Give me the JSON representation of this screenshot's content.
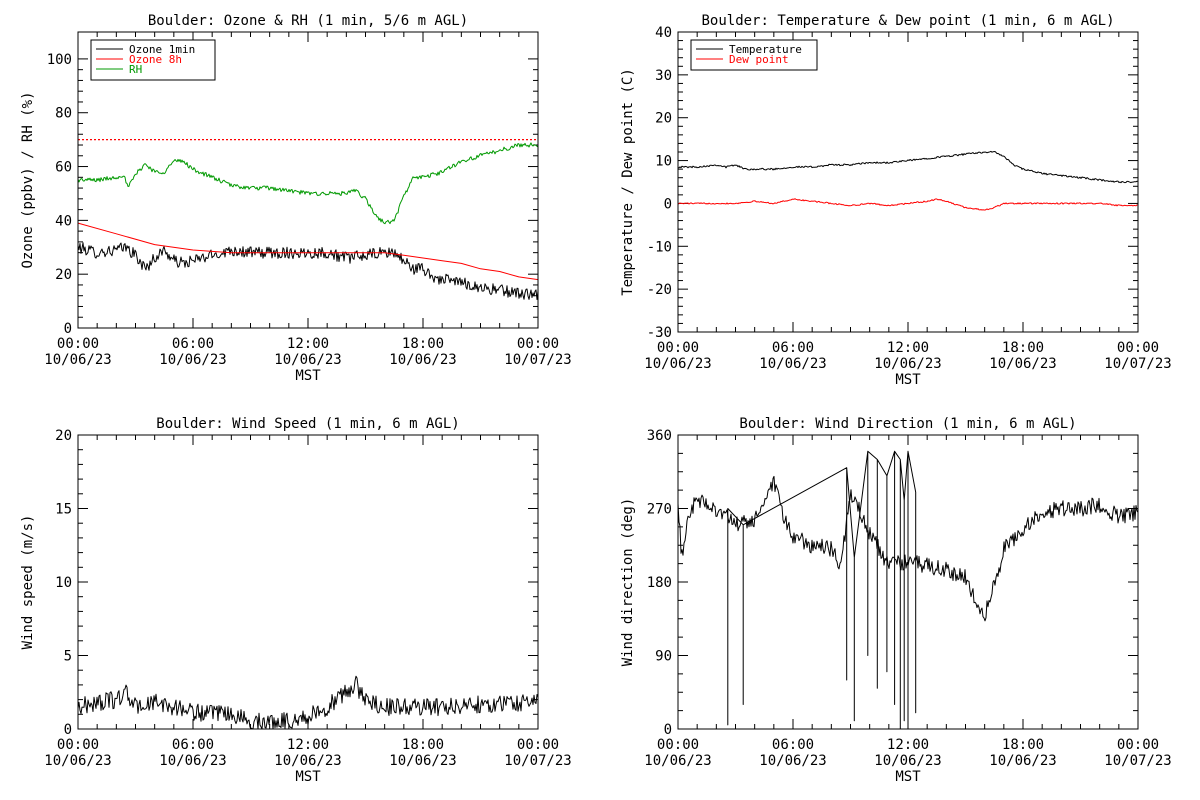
{
  "x_ticks": [
    "00:00",
    "06:00",
    "12:00",
    "18:00",
    "00:00"
  ],
  "x_dates": [
    "10/06/23",
    "10/06/23",
    "10/06/23",
    "10/06/23",
    "10/07/23"
  ],
  "x_label": "MST",
  "chart_data": [
    {
      "id": "ozone",
      "type": "line",
      "title": "Boulder: Ozone & RH (1 min, 5/6 m AGL)",
      "ylabel": "Ozone (ppbv) / RH (%)",
      "xlabel": "MST",
      "ylim": [
        0,
        110
      ],
      "yticks": [
        0,
        20,
        40,
        60,
        80,
        100
      ],
      "xlim_hours": [
        0,
        24
      ],
      "legend": "top-left",
      "reference_line": {
        "y": 70,
        "color": "#ff0000",
        "style": "dotted"
      },
      "series": [
        {
          "name": "Ozone 1min",
          "color": "#000000",
          "noise": 2.2,
          "x": [
            0,
            1,
            2,
            2.5,
            3,
            3.5,
            4,
            4.5,
            5,
            5.5,
            6,
            7,
            8,
            9,
            10,
            11,
            12,
            13,
            14,
            15,
            16,
            16.5,
            17,
            17.5,
            18,
            18.5,
            19,
            20,
            21,
            22,
            23,
            24
          ],
          "y": [
            30,
            28,
            29,
            30,
            27,
            22,
            26,
            29,
            25,
            24,
            25,
            27,
            29,
            28,
            28,
            28,
            28,
            28,
            26,
            27,
            28,
            28,
            25,
            22,
            22,
            19,
            18,
            17,
            15,
            14,
            13,
            12
          ]
        },
        {
          "name": "Ozone 8h",
          "color": "#ff0000",
          "noise": 0,
          "x": [
            0,
            2,
            4,
            6,
            8,
            10,
            12,
            14,
            16,
            17,
            18,
            19,
            20,
            21,
            22,
            23,
            24
          ],
          "y": [
            39,
            35,
            31,
            29,
            28,
            28,
            28,
            28,
            28,
            27,
            26,
            25,
            24,
            22,
            21,
            19,
            18
          ]
        },
        {
          "name": "RH",
          "color": "#009900",
          "noise": 0.8,
          "x": [
            0,
            1,
            2,
            2.4,
            2.6,
            3,
            3.5,
            4,
            4.5,
            5,
            5.5,
            6,
            7,
            8,
            9,
            10,
            11,
            12,
            13,
            14,
            14.5,
            15,
            15.5,
            16,
            16.5,
            17,
            17.5,
            18,
            19,
            20,
            21,
            22,
            23,
            24
          ],
          "y": [
            55,
            55,
            56,
            57,
            52,
            57,
            61,
            58,
            58,
            62,
            62,
            59,
            56,
            53,
            52,
            52,
            51,
            50,
            50,
            50,
            51,
            48,
            42,
            39,
            40,
            49,
            56,
            56,
            58,
            62,
            64,
            66,
            68,
            68
          ]
        }
      ]
    },
    {
      "id": "temp",
      "type": "line",
      "title": "Boulder: Temperature & Dew point (1 min, 6 m AGL)",
      "ylabel": "Temperature / Dew point (C)",
      "xlabel": "MST",
      "ylim": [
        -30,
        40
      ],
      "yticks": [
        -30,
        -20,
        -10,
        0,
        10,
        20,
        30,
        40
      ],
      "xlim_hours": [
        0,
        24
      ],
      "legend": "top-left",
      "series": [
        {
          "name": "Temperature",
          "color": "#000000",
          "noise": 0.2,
          "x": [
            0,
            1,
            2,
            2.5,
            3,
            3.5,
            4,
            5,
            6,
            7,
            8,
            9,
            10,
            11,
            12,
            13,
            14,
            15,
            16,
            16.5,
            17,
            17.5,
            18,
            19,
            20,
            21,
            22,
            23,
            24
          ],
          "y": [
            8.5,
            8.5,
            9,
            8.5,
            9,
            8,
            8,
            8,
            8.5,
            8.5,
            9,
            9,
            9.5,
            9.5,
            10,
            10.5,
            11,
            11.5,
            12,
            12,
            11,
            9,
            8,
            7,
            6.5,
            6,
            5.5,
            5,
            5
          ]
        },
        {
          "name": "Dew point",
          "color": "#ff0000",
          "noise": 0.15,
          "x": [
            0,
            1,
            2,
            3,
            4,
            5,
            6,
            7,
            8,
            9,
            10,
            11,
            12,
            13,
            13.5,
            14,
            15,
            16,
            16.5,
            17,
            18,
            19,
            20,
            21,
            22,
            23,
            24
          ],
          "y": [
            0,
            0,
            0,
            0,
            0.5,
            0,
            1,
            0.5,
            0,
            -0.5,
            0,
            -0.5,
            0,
            0.5,
            1,
            0.5,
            -1,
            -1.5,
            -1,
            0,
            0,
            0,
            0,
            0,
            0,
            -0.5,
            -0.5
          ]
        }
      ]
    },
    {
      "id": "wspd",
      "type": "line",
      "title": "Boulder: Wind Speed (1 min, 6 m AGL)",
      "ylabel": "Wind speed (m/s)",
      "xlabel": "MST",
      "ylim": [
        0,
        20
      ],
      "yticks": [
        0,
        5,
        10,
        15,
        20
      ],
      "xlim_hours": [
        0,
        24
      ],
      "series": [
        {
          "name": "",
          "color": "#000000",
          "noise": 0.6,
          "floor": 0,
          "x": [
            0,
            1,
            2,
            2.5,
            3,
            4,
            5,
            6,
            7,
            8,
            9,
            10,
            11,
            12,
            13,
            14,
            14.5,
            15,
            16,
            17,
            18,
            19,
            20,
            21,
            22,
            23,
            24
          ],
          "y": [
            1.5,
            1.8,
            2,
            2.5,
            1.5,
            1.8,
            1.5,
            1.2,
            1,
            1,
            0.5,
            0.5,
            0.6,
            0.8,
            1.5,
            2.5,
            3,
            2,
            1.5,
            1.5,
            1.5,
            1.5,
            1.6,
            1.7,
            1.7,
            1.8,
            2
          ]
        }
      ]
    },
    {
      "id": "wdir",
      "type": "line",
      "title": "Boulder: Wind Direction (1 min, 6 m AGL)",
      "ylabel": "Wind direction (deg)",
      "xlabel": "MST",
      "ylim": [
        0,
        360
      ],
      "yticks": [
        0,
        90,
        180,
        270,
        360
      ],
      "xlim_hours": [
        0,
        24
      ],
      "series": [
        {
          "name": "",
          "color": "#000000",
          "noise": 10,
          "floor": 0,
          "ceil": 360,
          "x": [
            0,
            0.2,
            0.5,
            1,
            2,
            2.5,
            3,
            4,
            4.5,
            5,
            5.5,
            6,
            7,
            8,
            8.5,
            9,
            10,
            11,
            12,
            13,
            14,
            15,
            15.5,
            16,
            16.5,
            17,
            18,
            19,
            20,
            21,
            22,
            23,
            24
          ],
          "y": [
            270,
            210,
            260,
            280,
            270,
            260,
            250,
            255,
            280,
            300,
            260,
            235,
            225,
            220,
            200,
            290,
            240,
            200,
            205,
            200,
            195,
            185,
            160,
            140,
            175,
            220,
            245,
            265,
            270,
            270,
            275,
            260,
            265
          ]
        },
        {
          "name": "",
          "color": "#000000",
          "noise": 0,
          "x": [
            2.6,
            2.6,
            2.6,
            3.4,
            3.4,
            3.4,
            8.8,
            8.8,
            8.8,
            9.2,
            9.2,
            9.2,
            9.9,
            9.9,
            9.9,
            10.4,
            10.4,
            10.4,
            10.9,
            10.9,
            10.9,
            11.3,
            11.3,
            11.3,
            11.6,
            11.6,
            11.6,
            11.8,
            11.8,
            11.8,
            12.0,
            12.0,
            12.0,
            12.4,
            12.4,
            12.4
          ],
          "y": [
            270,
            5,
            270,
            250,
            30,
            250,
            320,
            60,
            320,
            210,
            10,
            210,
            340,
            90,
            340,
            330,
            50,
            330,
            310,
            70,
            310,
            340,
            30,
            340,
            330,
            0,
            330,
            280,
            10,
            280,
            340,
            5,
            340,
            290,
            20,
            290
          ]
        }
      ]
    }
  ]
}
